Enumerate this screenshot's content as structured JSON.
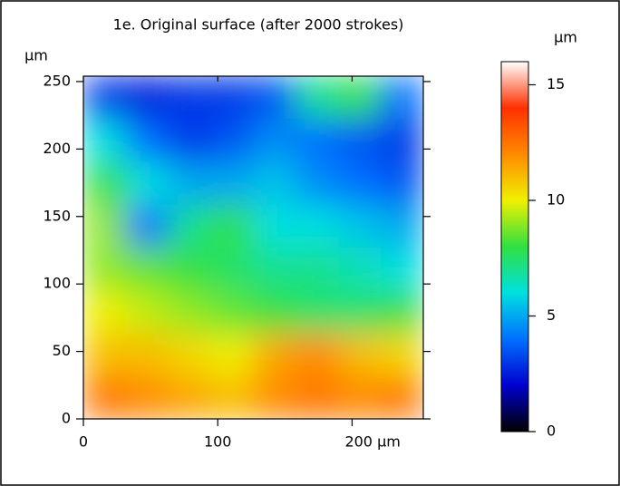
{
  "chart_data": {
    "type": "heatmap",
    "title": "1e. Original surface (after 2000 strokes)",
    "y_label": "µm",
    "colorbar_label": "µm",
    "xlim": [
      0,
      253
    ],
    "ylim": [
      0,
      254
    ],
    "xticks": [
      0,
      100,
      {
        "value": 200,
        "label": "200 µm"
      }
    ],
    "yticks": [
      0,
      50,
      100,
      150,
      200,
      250
    ],
    "zlim": [
      0,
      16
    ],
    "zticks": [
      0,
      5,
      10,
      15
    ],
    "colormap": [
      "#000000",
      "#0000d0",
      "#0070ff",
      "#00e0e0",
      "#30e040",
      "#f0f000",
      "#ff8a00",
      "#ff3000",
      "#ffffff"
    ],
    "values": [
      [
        3,
        2.5,
        3,
        3,
        3.5,
        7,
        8,
        4
      ],
      [
        6,
        4,
        3,
        3.5,
        4.5,
        4,
        3.5,
        3
      ],
      [
        8,
        6,
        5,
        5,
        5.5,
        4.5,
        4,
        3.5
      ],
      [
        9,
        4,
        7,
        8,
        6,
        6,
        5.5,
        5
      ],
      [
        9,
        8.5,
        8,
        7.5,
        7,
        7,
        6.5,
        6
      ],
      [
        10,
        9.5,
        9,
        8.5,
        8,
        7.5,
        7.5,
        8
      ],
      [
        11,
        11,
        10.5,
        10,
        11.5,
        12,
        11,
        10.5
      ],
      [
        12.5,
        12,
        11.5,
        11,
        12,
        12.5,
        12,
        12.5
      ]
    ]
  }
}
